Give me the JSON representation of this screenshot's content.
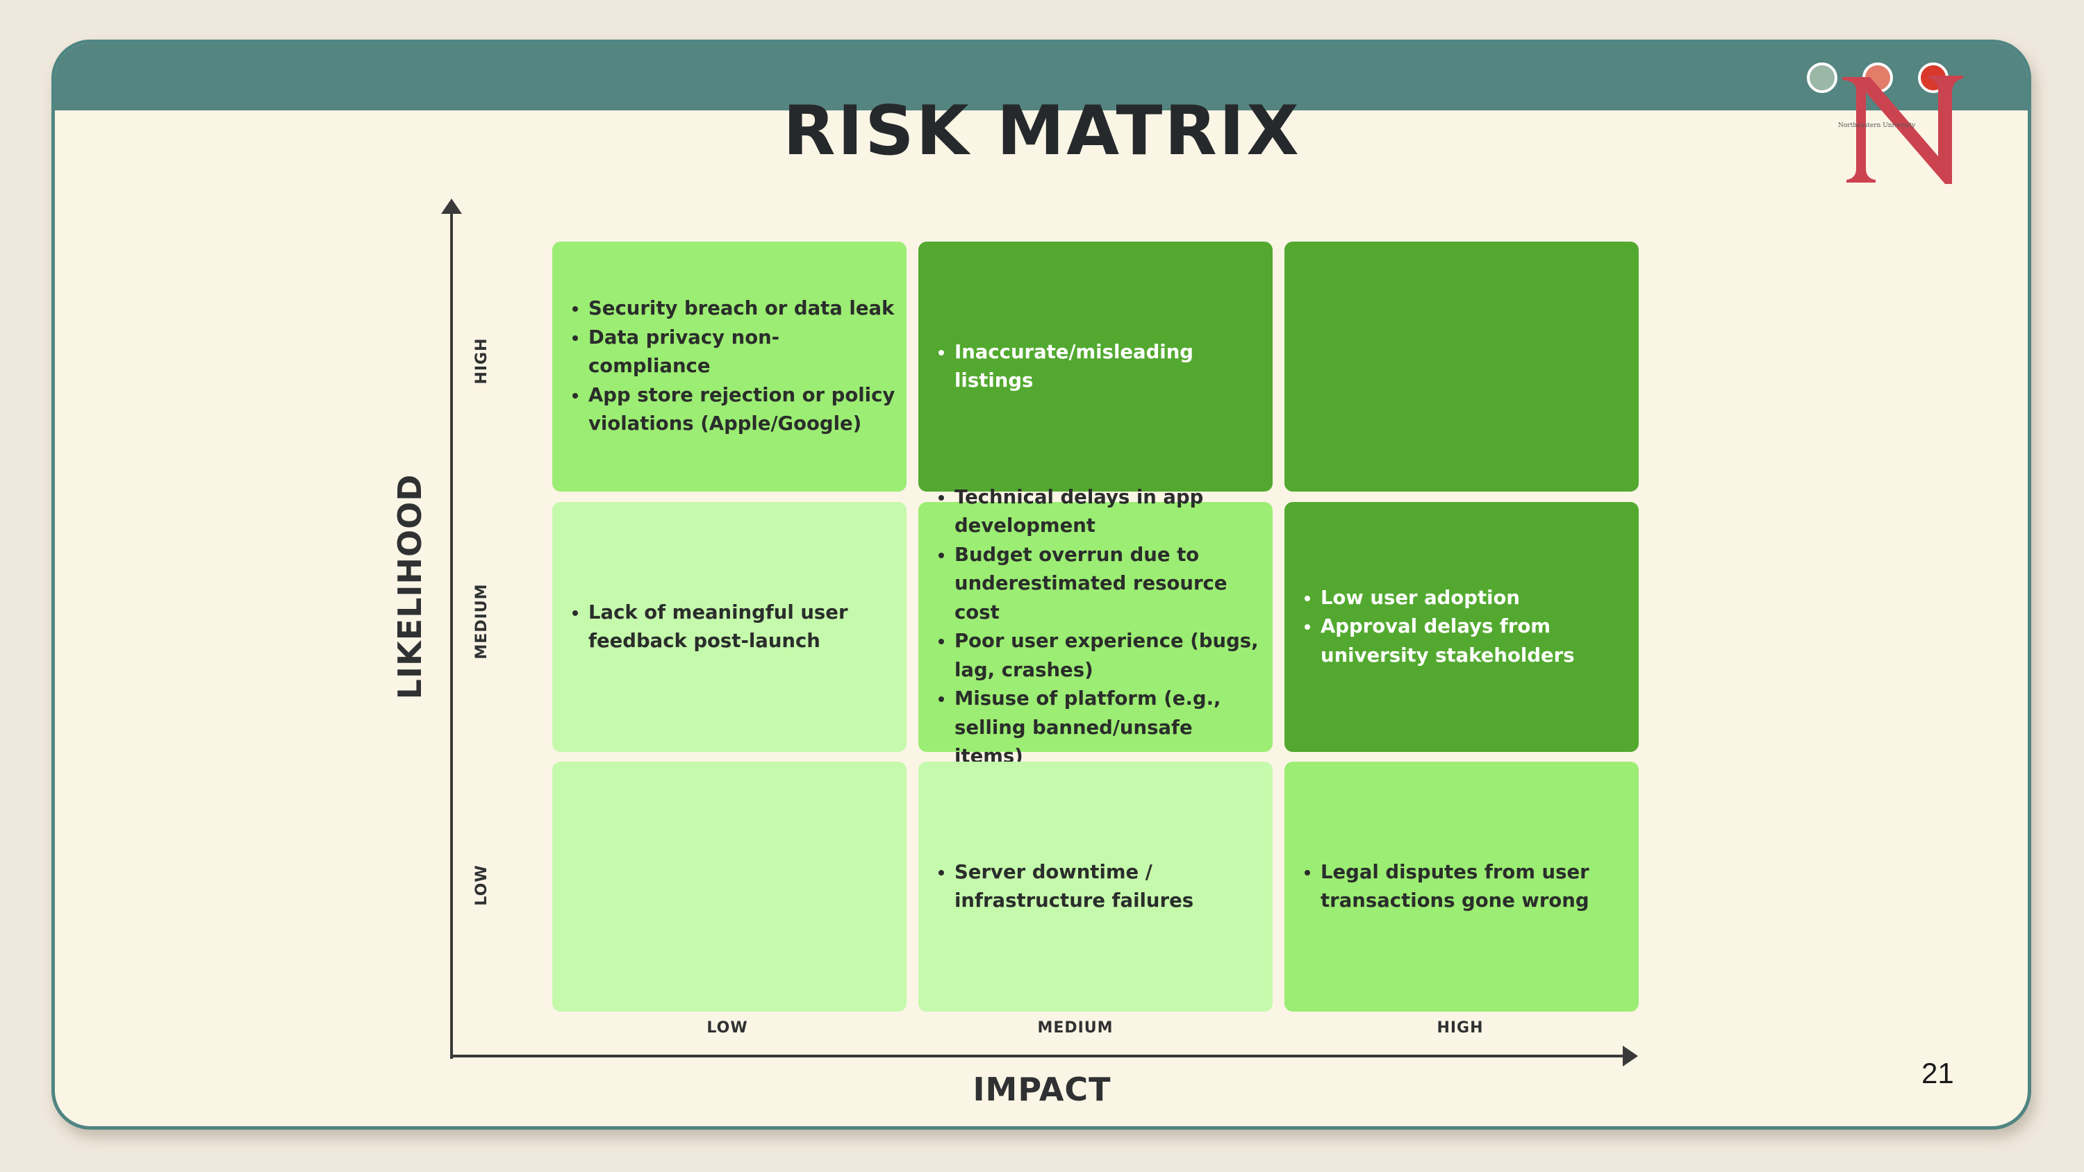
{
  "slide": {
    "title": "RISK MATRIX",
    "page_number": "21"
  },
  "window_controls": [
    "green-dot-icon",
    "salmon-dot-icon",
    "red-dot-icon"
  ],
  "logo": {
    "letter": "N",
    "wordmark": "Northeastern University",
    "color": "#cc4350"
  },
  "axes": {
    "y_title": "LIKELIHOOD",
    "x_title": "IMPACT",
    "y_ticks": [
      "HIGH",
      "MEDIUM",
      "LOW"
    ],
    "x_ticks": [
      "LOW",
      "MEDIUM",
      "HIGH"
    ]
  },
  "colors": {
    "light": "#c5f9ac",
    "medium": "#9ced73",
    "dark": "#53a930",
    "titlebar": "#558580"
  },
  "matrix": {
    "high": {
      "low": [
        "Security breach or data leak",
        "Data privacy non-compliance",
        "App store rejection or policy violations (Apple/Google)"
      ],
      "medium": [
        "Inaccurate/misleading listings"
      ],
      "high": []
    },
    "medium": {
      "low": [
        "Lack of meaningful user feedback post-launch"
      ],
      "medium": [
        "Technical delays in app development",
        "Budget overrun due to underestimated resource cost",
        "Poor user experience (bugs, lag, crashes)",
        "Misuse of platform (e.g., selling banned/unsafe items)"
      ],
      "high": [
        "Low user adoption",
        "Approval delays from university stakeholders"
      ]
    },
    "low": {
      "low": [],
      "medium": [
        "Server downtime / infrastructure failures"
      ],
      "high": [
        "Legal disputes from user transactions gone wrong"
      ]
    }
  }
}
